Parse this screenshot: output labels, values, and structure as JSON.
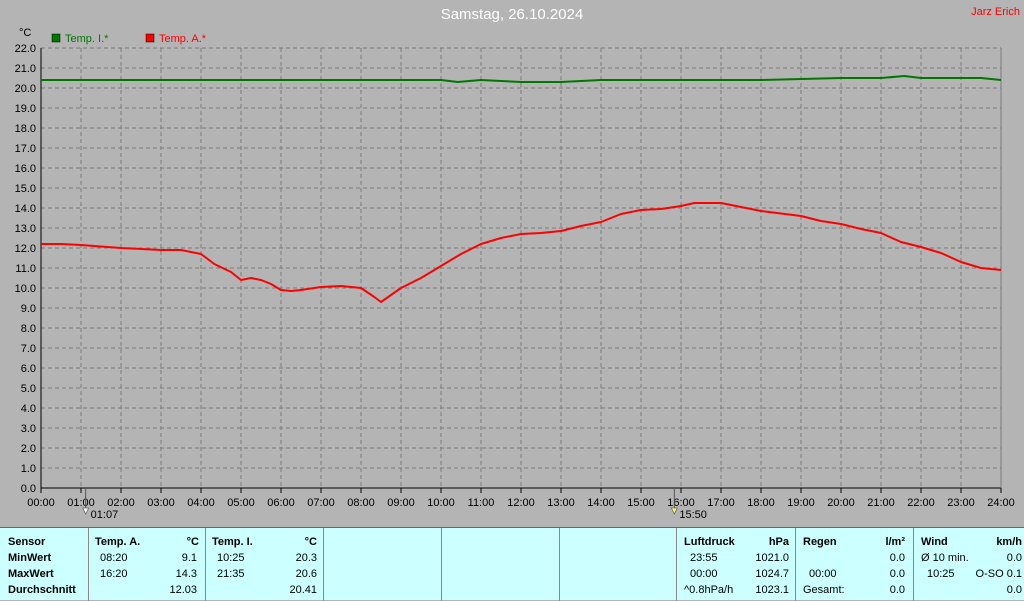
{
  "title": "Samstag, 26.10.2024",
  "author": "Jarz Erich",
  "colors": {
    "inside": "#007800",
    "outside": "#ff0000",
    "background": "#b4b4b4",
    "table": "#ccffff"
  },
  "chart_data": {
    "type": "line",
    "ylabel": "°C",
    "ylim": [
      0,
      22
    ],
    "y_ticks": [
      "0.0",
      "1.0",
      "2.0",
      "3.0",
      "4.0",
      "5.0",
      "6.0",
      "7.0",
      "8.0",
      "9.0",
      "10.0",
      "11.0",
      "12.0",
      "13.0",
      "14.0",
      "15.0",
      "16.0",
      "17.0",
      "18.0",
      "19.0",
      "20.0",
      "21.0",
      "22.0"
    ],
    "x_ticks": [
      "00:00",
      "01:00",
      "02:00",
      "03:00",
      "04:00",
      "05:00",
      "06:00",
      "07:00",
      "08:00",
      "09:00",
      "10:00",
      "11:00",
      "12:00",
      "13:00",
      "14:00",
      "15:00",
      "16:00",
      "17:00",
      "18:00",
      "19:00",
      "20:00",
      "21:00",
      "22:00",
      "23:00",
      "24:00"
    ],
    "grid": true,
    "legend_position": "top-left",
    "markers": [
      {
        "time": "01:07",
        "label": "01:07",
        "kind": "sunrise"
      },
      {
        "time": "15:50",
        "label": "15:50",
        "kind": "sunset"
      }
    ],
    "series": [
      {
        "name": "Temp. I.*",
        "x": [
          "00:00",
          "02:00",
          "04:00",
          "06:00",
          "08:00",
          "10:00",
          "10:25",
          "11:00",
          "12:00",
          "13:00",
          "14:00",
          "15:00",
          "16:00",
          "18:00",
          "20:00",
          "21:00",
          "21:35",
          "22:00",
          "23:00",
          "23:30",
          "24:00"
        ],
        "values": [
          20.4,
          20.4,
          20.4,
          20.4,
          20.4,
          20.4,
          20.3,
          20.4,
          20.3,
          20.3,
          20.4,
          20.4,
          20.4,
          20.4,
          20.5,
          20.5,
          20.6,
          20.5,
          20.5,
          20.5,
          20.4
        ]
      },
      {
        "name": "Temp. A.*",
        "x": [
          "00:00",
          "00:30",
          "01:00",
          "02:00",
          "03:00",
          "03:30",
          "04:00",
          "04:20",
          "04:45",
          "05:00",
          "05:15",
          "05:30",
          "05:45",
          "06:00",
          "06:15",
          "06:30",
          "07:00",
          "07:30",
          "08:00",
          "08:20",
          "08:30",
          "09:00",
          "09:30",
          "10:00",
          "10:30",
          "11:00",
          "11:30",
          "12:00",
          "12:30",
          "13:00",
          "13:30",
          "14:00",
          "14:30",
          "15:00",
          "15:30",
          "16:00",
          "16:20",
          "17:00",
          "17:30",
          "18:00",
          "19:00",
          "19:30",
          "20:00",
          "20:30",
          "21:00",
          "21:30",
          "22:00",
          "22:30",
          "23:00",
          "23:30",
          "24:00"
        ],
        "values": [
          12.2,
          12.2,
          12.15,
          12.0,
          11.9,
          11.9,
          11.7,
          11.2,
          10.8,
          10.4,
          10.5,
          10.4,
          10.2,
          9.9,
          9.85,
          9.9,
          10.05,
          10.1,
          10.0,
          9.55,
          9.3,
          10.0,
          10.5,
          11.1,
          11.7,
          12.2,
          12.5,
          12.7,
          12.75,
          12.85,
          13.1,
          13.3,
          13.7,
          13.9,
          13.95,
          14.1,
          14.25,
          14.25,
          14.05,
          13.85,
          13.6,
          13.35,
          13.2,
          12.95,
          12.75,
          12.3,
          12.05,
          11.75,
          11.3,
          11.0,
          10.9
        ]
      }
    ]
  },
  "table": {
    "sensor": {
      "header": "Sensor",
      "rows": [
        "MinWert",
        "MaxWert",
        "Durchschnitt"
      ]
    },
    "temp_a": {
      "header": "Temp. A.",
      "unit": "°C",
      "rows": [
        {
          "time": "08:20",
          "value": "9.1"
        },
        {
          "time": "16:20",
          "value": "14.3"
        },
        {
          "time": "",
          "value": "12.03"
        }
      ]
    },
    "temp_i": {
      "header": "Temp. I.",
      "unit": "°C",
      "rows": [
        {
          "time": "10:25",
          "value": "20.3"
        },
        {
          "time": "21:35",
          "value": "20.6"
        },
        {
          "time": "",
          "value": "20.41"
        }
      ]
    },
    "pressure": {
      "header": "Luftdruck",
      "unit": "hPa",
      "rows": [
        {
          "time": "23:55",
          "value": "1021.0"
        },
        {
          "time": "00:00",
          "value": "1024.7"
        },
        {
          "time": "^0.8hPa/h",
          "value": "1023.1"
        }
      ]
    },
    "rain": {
      "header": "Regen",
      "unit": "l/m²",
      "rows": [
        {
          "time": "",
          "value": "0.0"
        },
        {
          "time": "00:00",
          "value": "0.0"
        },
        {
          "time": "Gesamt:",
          "value": "0.0"
        }
      ]
    },
    "wind": {
      "header": "Wind",
      "unit": "km/h",
      "rows": [
        {
          "time": "Ø 10 min.",
          "value": "0.0"
        },
        {
          "time": "10:25",
          "value": "O-SO 0.1"
        },
        {
          "time": "",
          "value": "0.0"
        }
      ]
    }
  }
}
